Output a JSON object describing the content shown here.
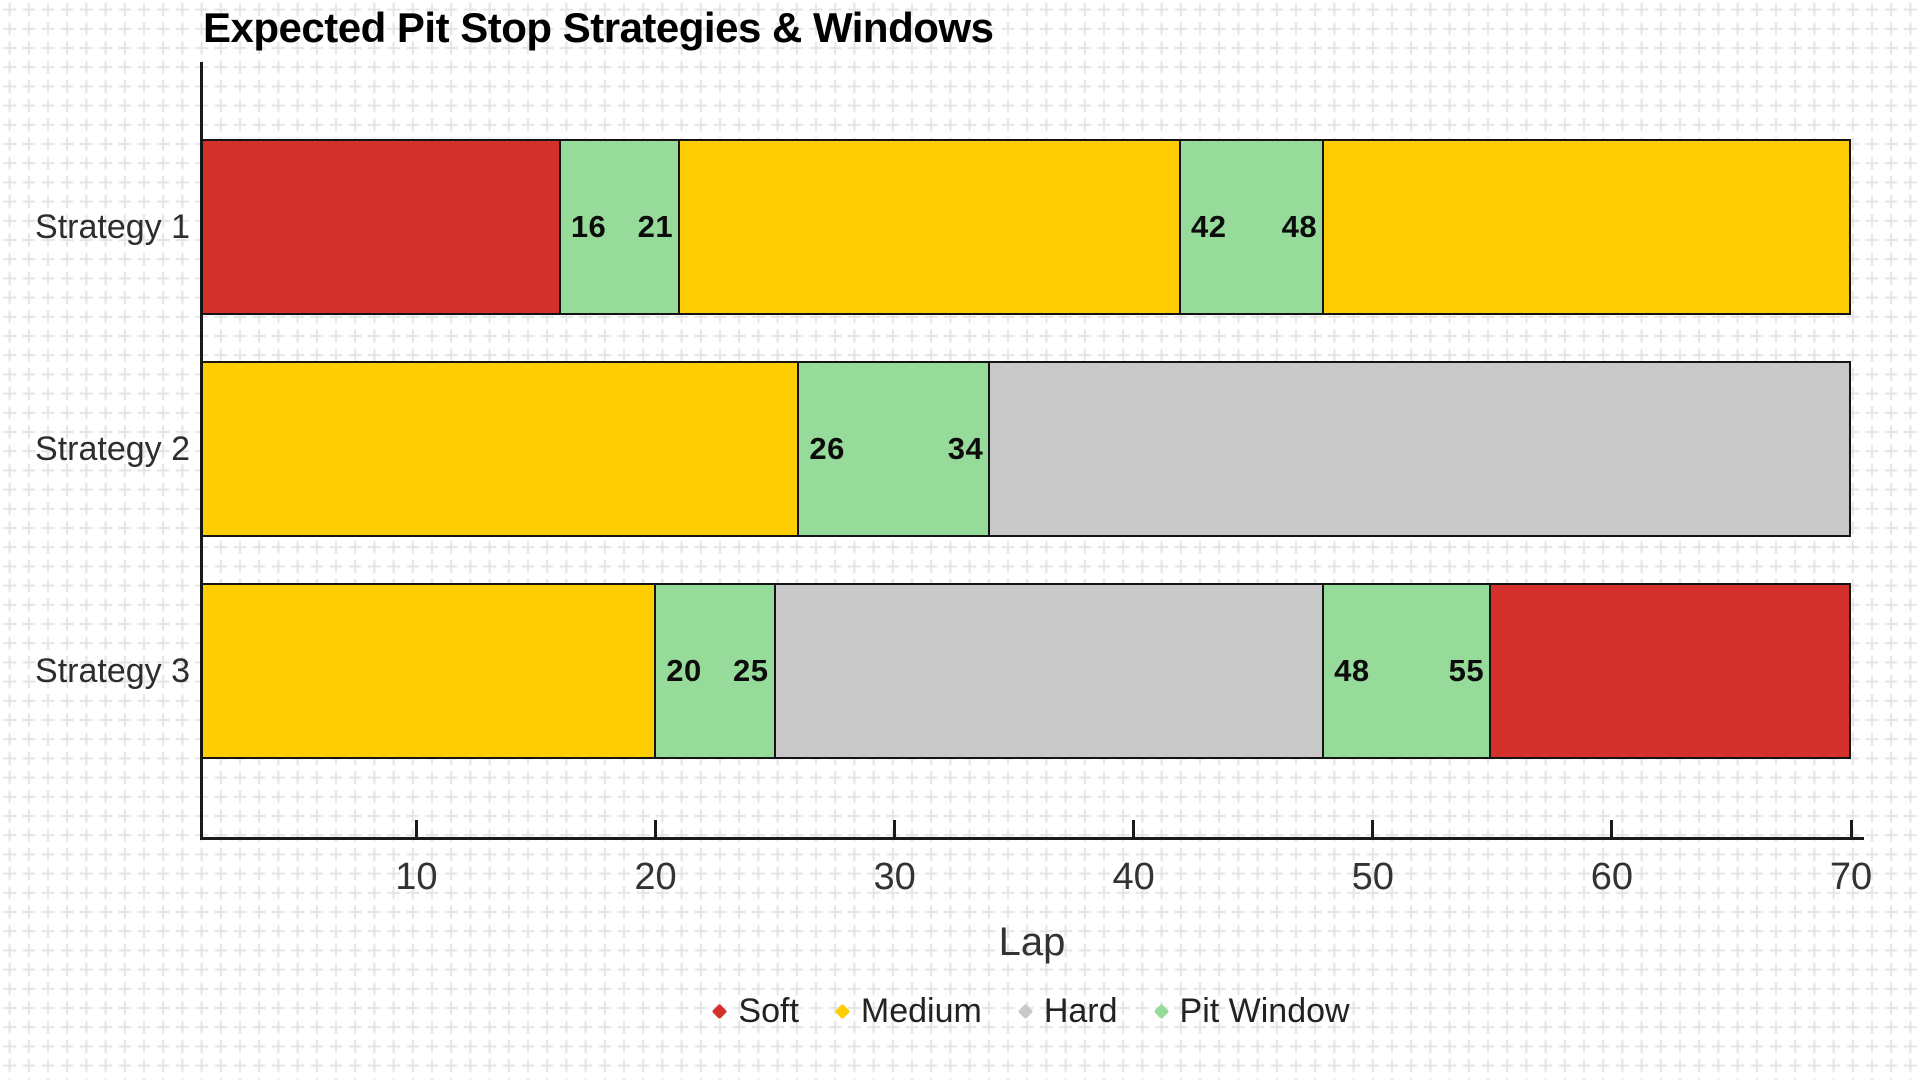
{
  "title": "Expected Pit Stop Strategies & Windows",
  "axis": {
    "xlabel": "Lap",
    "xtick_labels": [
      "10",
      "20",
      "30",
      "40",
      "50",
      "60",
      "70"
    ]
  },
  "legend": {
    "items": [
      {
        "label": "Soft",
        "color": "#d5312c"
      },
      {
        "label": "Medium",
        "color": "#ffcd03"
      },
      {
        "label": "Hard",
        "color": "#c9c9c9"
      },
      {
        "label": "Pit Window",
        "color": "#97db9a"
      }
    ]
  },
  "chart_data": {
    "type": "bar",
    "orientation": "horizontal",
    "title": "Expected Pit Stop Strategies & Windows",
    "xlabel": "Lap",
    "xlim": [
      0,
      70
    ],
    "xticks": [
      10,
      20,
      30,
      40,
      50,
      60,
      70
    ],
    "bar_lap_start": 1,
    "bar_lap_end": 70,
    "grid": "graph-paper cross pattern background",
    "legend_position": "bottom center",
    "categories": [
      "Strategy 1",
      "Strategy 2",
      "Strategy 3"
    ],
    "compound_colors": {
      "Soft": "#d5312c",
      "Medium": "#ffcd03",
      "Hard": "#c9c9c9",
      "Pit Window": "#97db9a"
    },
    "series": [
      {
        "name": "Strategy 1",
        "segments": [
          {
            "compound": "Soft",
            "start": 1,
            "end": 16
          },
          {
            "compound": "Pit Window",
            "start": 16,
            "end": 21,
            "start_label": "16",
            "end_label": "21"
          },
          {
            "compound": "Medium",
            "start": 21,
            "end": 42
          },
          {
            "compound": "Pit Window",
            "start": 42,
            "end": 48,
            "start_label": "42",
            "end_label": "48"
          },
          {
            "compound": "Medium",
            "start": 48,
            "end": 70
          }
        ]
      },
      {
        "name": "Strategy 2",
        "segments": [
          {
            "compound": "Medium",
            "start": 1,
            "end": 26
          },
          {
            "compound": "Pit Window",
            "start": 26,
            "end": 34,
            "start_label": "26",
            "end_label": "34"
          },
          {
            "compound": "Hard",
            "start": 34,
            "end": 70
          }
        ]
      },
      {
        "name": "Strategy 3",
        "segments": [
          {
            "compound": "Medium",
            "start": 1,
            "end": 20
          },
          {
            "compound": "Pit Window",
            "start": 20,
            "end": 25,
            "start_label": "20",
            "end_label": "25"
          },
          {
            "compound": "Hard",
            "start": 25,
            "end": 48
          },
          {
            "compound": "Pit Window",
            "start": 48,
            "end": 55,
            "start_label": "48",
            "end_label": "55"
          },
          {
            "compound": "Soft",
            "start": 55,
            "end": 70
          }
        ]
      }
    ]
  }
}
